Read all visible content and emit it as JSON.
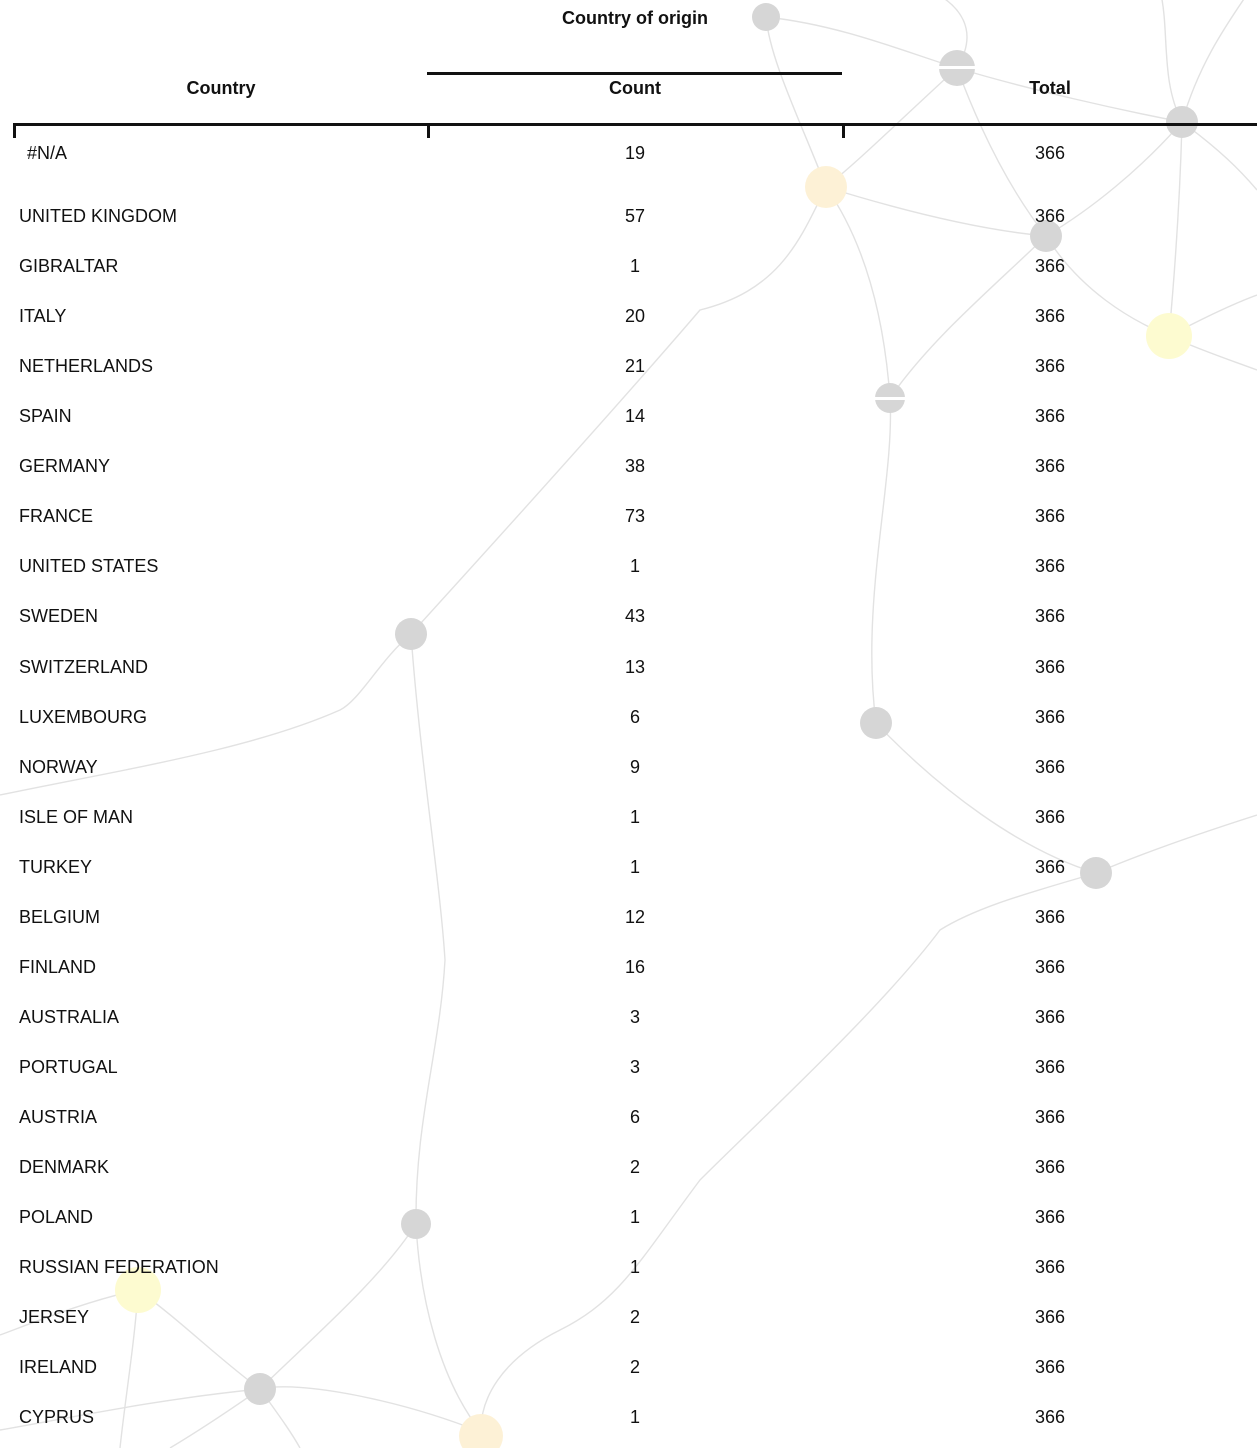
{
  "table": {
    "group_header": "Country of origin",
    "headers": {
      "country": "Country",
      "count": "Count",
      "total": "Total"
    },
    "rows": [
      {
        "country": "#N/A",
        "count": "19",
        "total": "366"
      },
      {
        "country": "UNITED KINGDOM",
        "count": "57",
        "total": "366"
      },
      {
        "country": "GIBRALTAR",
        "count": "1",
        "total": "366"
      },
      {
        "country": "ITALY",
        "count": "20",
        "total": "366"
      },
      {
        "country": "NETHERLANDS",
        "count": "21",
        "total": "366"
      },
      {
        "country": "SPAIN",
        "count": "14",
        "total": "366"
      },
      {
        "country": "GERMANY",
        "count": "38",
        "total": "366"
      },
      {
        "country": "FRANCE",
        "count": "73",
        "total": "366"
      },
      {
        "country": "UNITED STATES",
        "count": "1",
        "total": "366"
      },
      {
        "country": "SWEDEN",
        "count": "43",
        "total": "366"
      },
      {
        "country": "SWITZERLAND",
        "count": "13",
        "total": "366"
      },
      {
        "country": "LUXEMBOURG",
        "count": "6",
        "total": "366"
      },
      {
        "country": "NORWAY",
        "count": "9",
        "total": "366"
      },
      {
        "country": "ISLE OF MAN",
        "count": "1",
        "total": "366"
      },
      {
        "country": "TURKEY",
        "count": "1",
        "total": "366"
      },
      {
        "country": "BELGIUM",
        "count": "12",
        "total": "366"
      },
      {
        "country": "FINLAND",
        "count": "16",
        "total": "366"
      },
      {
        "country": "AUSTRALIA",
        "count": "3",
        "total": "366"
      },
      {
        "country": "PORTUGAL",
        "count": "3",
        "total": "366"
      },
      {
        "country": "AUSTRIA",
        "count": "6",
        "total": "366"
      },
      {
        "country": "DENMARK",
        "count": "2",
        "total": "366"
      },
      {
        "country": "POLAND",
        "count": "1",
        "total": "366"
      },
      {
        "country": "RUSSIAN FEDERATION",
        "count": "1",
        "total": "366"
      },
      {
        "country": "JERSEY",
        "count": "2",
        "total": "366"
      },
      {
        "country": "IRELAND",
        "count": "2",
        "total": "366"
      },
      {
        "country": "CYPRUS",
        "count": "1",
        "total": "366"
      }
    ]
  },
  "colors": {
    "text": "#111111",
    "rule": "#111111",
    "network_line": "#dddddd",
    "network_node_grey": "#d3d3d3",
    "network_node_cream": "#fdf1d6",
    "network_node_yellow": "#fdfbd0"
  }
}
